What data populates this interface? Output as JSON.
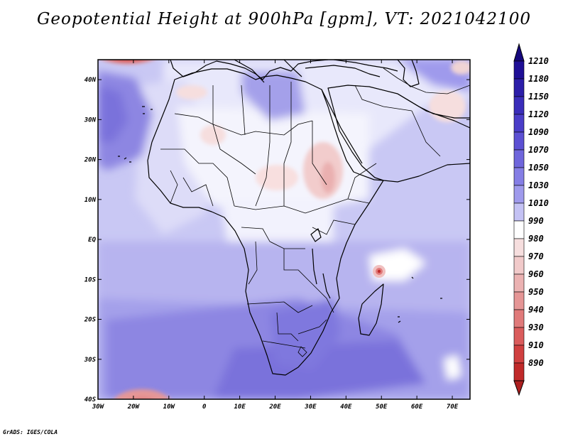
{
  "title": "Geopotential Height at 900hPa [gpm], VT: 2021042100",
  "footer": "GrADS: IGES/COLA",
  "map": {
    "variable": "Geopotential Height",
    "level_hpa": 900,
    "units": "gpm",
    "valid_time": "2021042100",
    "lon_range": [
      -30,
      75
    ],
    "lat_range": [
      -40,
      45
    ]
  },
  "axes": {
    "lat_labels": [
      {
        "value": 40,
        "label": "40N"
      },
      {
        "value": 30,
        "label": "30N"
      },
      {
        "value": 20,
        "label": "20N"
      },
      {
        "value": 10,
        "label": "10N"
      },
      {
        "value": 0,
        "label": "EQ"
      },
      {
        "value": -10,
        "label": "10S"
      },
      {
        "value": -20,
        "label": "20S"
      },
      {
        "value": -30,
        "label": "30S"
      },
      {
        "value": -40,
        "label": "40S"
      }
    ],
    "lon_labels": [
      {
        "value": -30,
        "label": "30W"
      },
      {
        "value": -20,
        "label": "20W"
      },
      {
        "value": -10,
        "label": "10W"
      },
      {
        "value": 0,
        "label": "0"
      },
      {
        "value": 10,
        "label": "10E"
      },
      {
        "value": 20,
        "label": "20E"
      },
      {
        "value": 30,
        "label": "30E"
      },
      {
        "value": 40,
        "label": "40E"
      },
      {
        "value": 50,
        "label": "50E"
      },
      {
        "value": 60,
        "label": "60E"
      },
      {
        "value": 70,
        "label": "70E"
      }
    ]
  },
  "colorbar": {
    "levels": [
      {
        "label": "1210",
        "color": "#1f0f96"
      },
      {
        "label": "1180",
        "color": "#2c1ea9"
      },
      {
        "label": "1150",
        "color": "#3a2dba"
      },
      {
        "label": "1120",
        "color": "#4a3dc8"
      },
      {
        "label": "1090",
        "color": "#5c50d3"
      },
      {
        "label": "1070",
        "color": "#6f66dc"
      },
      {
        "label": "1050",
        "color": "#857ee5"
      },
      {
        "label": "1030",
        "color": "#9f9aec"
      },
      {
        "label": "1010",
        "color": "#c4c2f4"
      },
      {
        "label": "990",
        "color": "#ffffff"
      },
      {
        "label": "980",
        "color": "#f6dede"
      },
      {
        "label": "970",
        "color": "#f1caca"
      },
      {
        "label": "960",
        "color": "#ebb2b2"
      },
      {
        "label": "950",
        "color": "#e59696"
      },
      {
        "label": "940",
        "color": "#e07a7a"
      },
      {
        "label": "930",
        "color": "#da5c5c"
      },
      {
        "label": "910",
        "color": "#d04040"
      },
      {
        "label": "890",
        "color": "#c02a2a"
      }
    ],
    "top_color": "#16087d",
    "bottom_color": "#ad1f1f"
  }
}
